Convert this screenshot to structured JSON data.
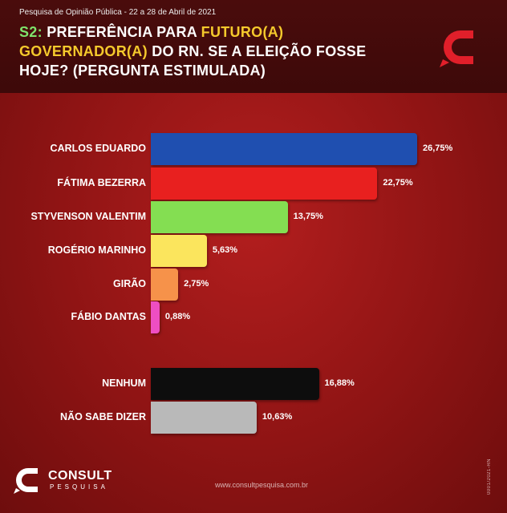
{
  "header": {
    "subtitle": "Pesquisa de Opinião Pública - 22 a 28 de Abril de 2021",
    "title_code": "S2:",
    "title_part1": " PREFERÊNCIA PARA ",
    "title_highlight": "FUTURO(A) GOVERNADOR(A)",
    "title_part2": " DO RN. SE A ELEIÇÃO FOSSE HOJE?",
    "title_part3": " (PERGUNTA ESTIMULADA)"
  },
  "chart_data": {
    "type": "bar",
    "orientation": "horizontal",
    "categories": [
      "CARLOS EDUARDO",
      "FÁTIMA BEZERRA",
      "STYVENSON VALENTIM",
      "ROGÉRIO MARINHO",
      "GIRÃO",
      "FÁBIO DANTAS",
      "NENHUM",
      "NÃO SABE DIZER"
    ],
    "values": [
      26.75,
      22.75,
      13.75,
      5.63,
      2.75,
      0.88,
      16.88,
      10.63
    ],
    "value_labels": [
      "26,75%",
      "22,75%",
      "13,75%",
      "5,63%",
      "2,75%",
      "0,88%",
      "16,88%",
      "10,63%"
    ],
    "colors": [
      "#1f4fb0",
      "#e8201f",
      "#84de52",
      "#fbe55d",
      "#f6924a",
      "#ee4ec2",
      "#0d0d0d",
      "#b9b9b9"
    ],
    "xlim": [
      0,
      26.75
    ]
  },
  "footer": {
    "brand": "CONSULT",
    "brand_sub": "PESQUISA",
    "website": "www.consultpesquisa.com.br",
    "side_mark": "0001/2021-RN"
  },
  "icons": {
    "logo": "consult-logo-icon"
  }
}
